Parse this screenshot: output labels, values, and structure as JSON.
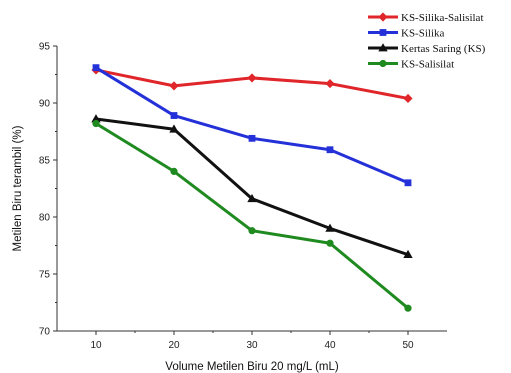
{
  "chart_data": {
    "type": "line",
    "title": "",
    "xlabel": "Volume Metilen Biru 20 mg/L (mL)",
    "ylabel": "Metilen Biru terambil (%)",
    "x": [
      10,
      20,
      30,
      40,
      50
    ],
    "x_ticks": [
      "10",
      "20",
      "30",
      "40",
      "50"
    ],
    "xlim": [
      5,
      55
    ],
    "y_ticks": [
      "70",
      "75",
      "80",
      "85",
      "90",
      "95"
    ],
    "ylim": [
      70,
      95
    ],
    "grid": false,
    "legend_position": "top-right",
    "series": [
      {
        "name": "KS-Silika-Salisilat",
        "color": "#e0262a",
        "marker": "diamond",
        "values": [
          92.9,
          91.5,
          92.2,
          91.7,
          90.4
        ]
      },
      {
        "name": "KS-Silika",
        "color": "#2430d8",
        "marker": "square",
        "values": [
          93.1,
          88.9,
          86.9,
          85.9,
          83.0
        ]
      },
      {
        "name": "Kertas Saring (KS)",
        "color": "#111111",
        "marker": "triangle",
        "values": [
          88.6,
          87.7,
          81.6,
          79.0,
          76.7
        ]
      },
      {
        "name": "KS-Salisilat",
        "color": "#1f8a1f",
        "marker": "circle",
        "values": [
          88.2,
          84.0,
          78.8,
          77.7,
          72.0
        ]
      }
    ]
  }
}
